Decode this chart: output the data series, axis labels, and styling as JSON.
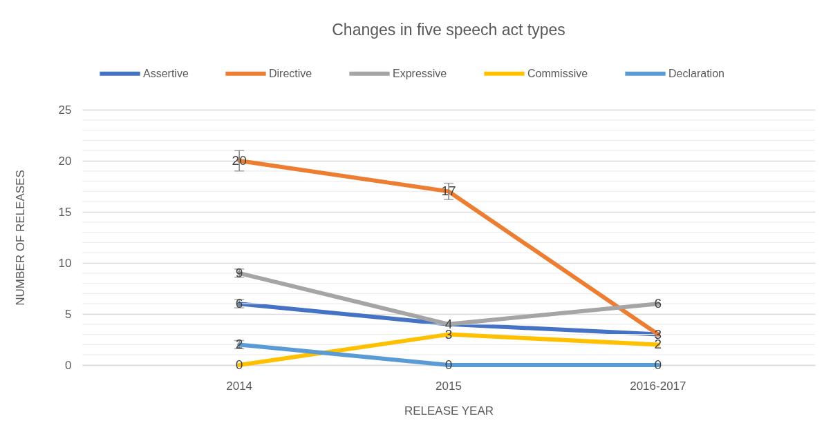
{
  "chart_data": {
    "type": "line",
    "title": "Changes in five speech act types",
    "xlabel": "RELEASE YEAR",
    "ylabel": "NUMBER OF RELEASES",
    "categories": [
      "2014",
      "2015",
      "2016-2017"
    ],
    "series": [
      {
        "name": "Assertive",
        "color": "#4472c4",
        "values": [
          6,
          4,
          3
        ],
        "errors": [
          0.4,
          null,
          null
        ],
        "value_labels": [
          "6",
          "4",
          "3"
        ]
      },
      {
        "name": "Directive",
        "color": "#ed7d31",
        "values": [
          20,
          17,
          3
        ],
        "errors": [
          1,
          0.8,
          null
        ],
        "value_labels": [
          "20",
          "17",
          null
        ]
      },
      {
        "name": "Expressive",
        "color": "#a5a5a5",
        "values": [
          9,
          4,
          6
        ],
        "errors": [
          0.4,
          null,
          null
        ],
        "value_labels": [
          "9",
          null,
          "6"
        ]
      },
      {
        "name": "Commissive",
        "color": "#ffc000",
        "values": [
          0,
          3,
          2
        ],
        "value_labels": [
          "0",
          "3",
          "2"
        ]
      },
      {
        "name": "Declaration",
        "color": "#5b9bd5",
        "values": [
          2,
          0,
          0
        ],
        "errors": [
          0.4,
          null,
          null
        ],
        "value_labels": [
          "2",
          "0",
          "0"
        ]
      }
    ],
    "ylim": [
      0,
      25
    ],
    "yticks": [
      0,
      {
        "value": 1,
        "label": null
      },
      {
        "value": 2,
        "label": null
      },
      {
        "value": 3,
        "label": null
      },
      {
        "value": 4,
        "label": null
      },
      5,
      {
        "value": 6,
        "label": null
      },
      {
        "value": 7,
        "label": null
      },
      {
        "value": 8,
        "label": null
      },
      {
        "value": 9,
        "label": null
      },
      10,
      {
        "value": 11,
        "label": null
      },
      {
        "value": 12,
        "label": null
      },
      {
        "value": 13,
        "label": null
      },
      {
        "value": 14,
        "label": null
      },
      15,
      {
        "value": 16,
        "label": null
      },
      {
        "value": 17,
        "label": null
      },
      {
        "value": 18,
        "label": null
      },
      {
        "value": 19,
        "label": null
      },
      20,
      {
        "value": 21,
        "label": null
      },
      {
        "value": 22,
        "label": null
      },
      {
        "value": 23,
        "label": null
      },
      {
        "value": 24,
        "label": null
      },
      25
    ],
    "grid": "y",
    "legend": "top"
  }
}
